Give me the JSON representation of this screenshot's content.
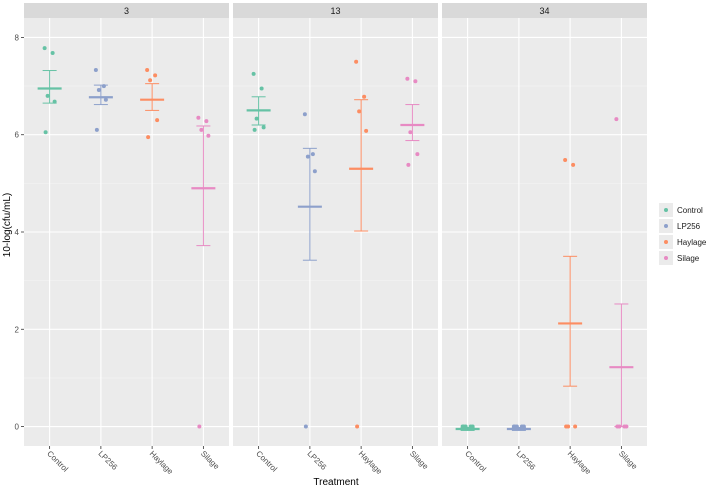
{
  "chart_data": {
    "type": "scatter",
    "description_free": true,
    "xlabel": "Treatment",
    "ylabel": "10-log(cfu/mL)",
    "ylim": [
      -0.4,
      8.4
    ],
    "y_ticks": [
      0,
      2,
      4,
      6,
      8
    ],
    "categories": [
      "Control",
      "LP256",
      "Haylage",
      "Silage"
    ],
    "colors": {
      "Control": "#66C2A5",
      "LP256": "#8DA0CB",
      "Haylage": "#FC8D62",
      "Silage": "#E78AC3"
    },
    "legend": [
      "Control",
      "LP256",
      "Haylage",
      "Silage"
    ],
    "legend_position": "right",
    "panels": [
      {
        "label": "3",
        "groups": [
          {
            "treatment": "Control",
            "mean": 6.95,
            "lower": 6.65,
            "upper": 7.32,
            "points": [
              7.78,
              7.68,
              6.8,
              6.68,
              6.05
            ]
          },
          {
            "treatment": "LP256",
            "mean": 6.77,
            "lower": 6.62,
            "upper": 7.02,
            "points": [
              7.33,
              7.0,
              6.92,
              6.72,
              6.1
            ]
          },
          {
            "treatment": "Haylage",
            "mean": 6.72,
            "lower": 6.5,
            "upper": 7.05,
            "points": [
              7.33,
              7.22,
              7.12,
              6.3,
              5.95
            ]
          },
          {
            "treatment": "Silage",
            "mean": 4.9,
            "lower": 3.72,
            "upper": 6.18,
            "points": [
              6.35,
              6.28,
              6.1,
              5.98,
              0.0
            ]
          }
        ]
      },
      {
        "label": "13",
        "groups": [
          {
            "treatment": "Control",
            "mean": 6.5,
            "lower": 6.2,
            "upper": 6.78,
            "points": [
              7.25,
              6.95,
              6.33,
              6.15,
              6.1
            ]
          },
          {
            "treatment": "LP256",
            "mean": 4.52,
            "lower": 3.42,
            "upper": 5.72,
            "points": [
              6.42,
              5.6,
              5.55,
              5.25,
              0.0
            ]
          },
          {
            "treatment": "Haylage",
            "mean": 5.3,
            "lower": 4.02,
            "upper": 6.72,
            "points": [
              7.5,
              6.78,
              6.48,
              6.08,
              0.0
            ]
          },
          {
            "treatment": "Silage",
            "mean": 6.2,
            "lower": 5.88,
            "upper": 6.62,
            "points": [
              7.15,
              7.1,
              6.05,
              5.6,
              5.38
            ]
          }
        ]
      },
      {
        "label": "34",
        "groups": [
          {
            "treatment": "Control",
            "mean": -0.05,
            "lower": -0.08,
            "upper": -0.02,
            "points": [
              0.0,
              0.0,
              0.0,
              0.0,
              0.0
            ]
          },
          {
            "treatment": "LP256",
            "mean": -0.05,
            "lower": -0.08,
            "upper": -0.02,
            "points": [
              0.0,
              0.0,
              0.0,
              0.0,
              0.0
            ]
          },
          {
            "treatment": "Haylage",
            "mean": 2.12,
            "lower": 0.83,
            "upper": 3.5,
            "points": [
              5.48,
              5.38,
              0.0,
              0.0,
              0.0
            ]
          },
          {
            "treatment": "Silage",
            "mean": 1.22,
            "lower": 0.0,
            "upper": 2.52,
            "points": [
              6.32,
              0.0,
              0.0,
              0.0,
              0.0
            ]
          }
        ]
      }
    ]
  }
}
